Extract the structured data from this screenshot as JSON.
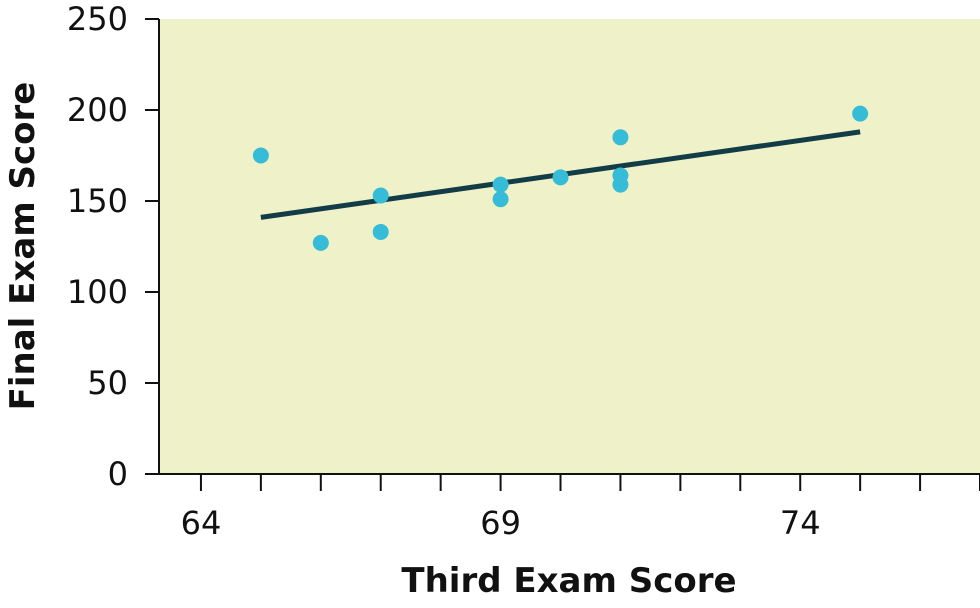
{
  "chart_data": {
    "type": "scatter",
    "title": "",
    "xlabel": "Third Exam Score",
    "ylabel": "Final Exam Score",
    "xlim": [
      63.3,
      77.0
    ],
    "ylim": [
      0,
      250
    ],
    "x_tick_labels": [
      64,
      69,
      74
    ],
    "x_minor_ticks": [
      64,
      65,
      66,
      67,
      68,
      69,
      70,
      71,
      72,
      73,
      74,
      75,
      76,
      77
    ],
    "y_ticks": [
      0,
      50,
      100,
      150,
      200,
      250
    ],
    "grid": false,
    "legend": "none",
    "points": [
      {
        "x": 65,
        "y": 175
      },
      {
        "x": 66,
        "y": 127
      },
      {
        "x": 67,
        "y": 153
      },
      {
        "x": 67,
        "y": 133
      },
      {
        "x": 69,
        "y": 159
      },
      {
        "x": 69,
        "y": 151
      },
      {
        "x": 70,
        "y": 163
      },
      {
        "x": 71,
        "y": 185
      },
      {
        "x": 71,
        "y": 164
      },
      {
        "x": 71,
        "y": 159
      },
      {
        "x": 75,
        "y": 198
      }
    ],
    "regression_line": {
      "x": [
        65,
        75
      ],
      "y": [
        141,
        188
      ]
    },
    "colors": {
      "plot_background": "#eff1c8",
      "points": "#36bcd6",
      "line": "#123c46",
      "axis": "#111111"
    }
  }
}
